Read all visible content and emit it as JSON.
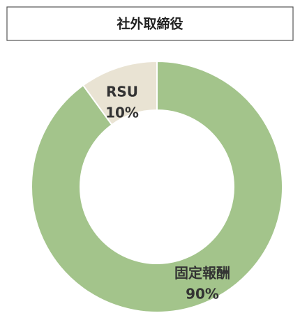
{
  "chart_data": {
    "type": "donut",
    "title": "社外取締役",
    "categories": [
      "固定報酬",
      "RSU"
    ],
    "values": [
      90,
      10
    ],
    "value_labels": [
      "90%",
      "10%"
    ],
    "colors": [
      "#a3c48b",
      "#e9e3d3"
    ]
  }
}
